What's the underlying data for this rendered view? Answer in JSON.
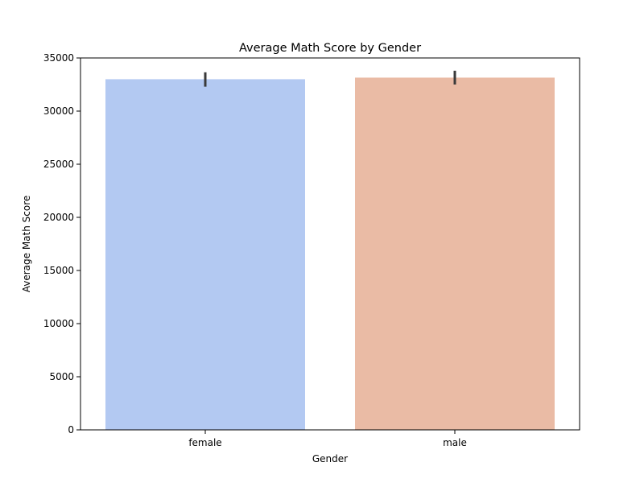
{
  "chart_data": {
    "type": "bar",
    "title": "Average Math Score by Gender",
    "xlabel": "Gender",
    "ylabel": "Average Math Score",
    "categories": [
      "female",
      "male"
    ],
    "values": [
      33000,
      33150
    ],
    "error_bars": [
      [
        32300,
        33650
      ],
      [
        32500,
        33800
      ]
    ],
    "ylim": [
      0,
      35000
    ],
    "yticks": [
      0,
      5000,
      10000,
      15000,
      20000,
      25000,
      30000,
      35000
    ],
    "colors": [
      "#b3c9f2",
      "#eabba5"
    ],
    "error_color": "#3a3a3a",
    "grid": false,
    "legend": "none"
  }
}
